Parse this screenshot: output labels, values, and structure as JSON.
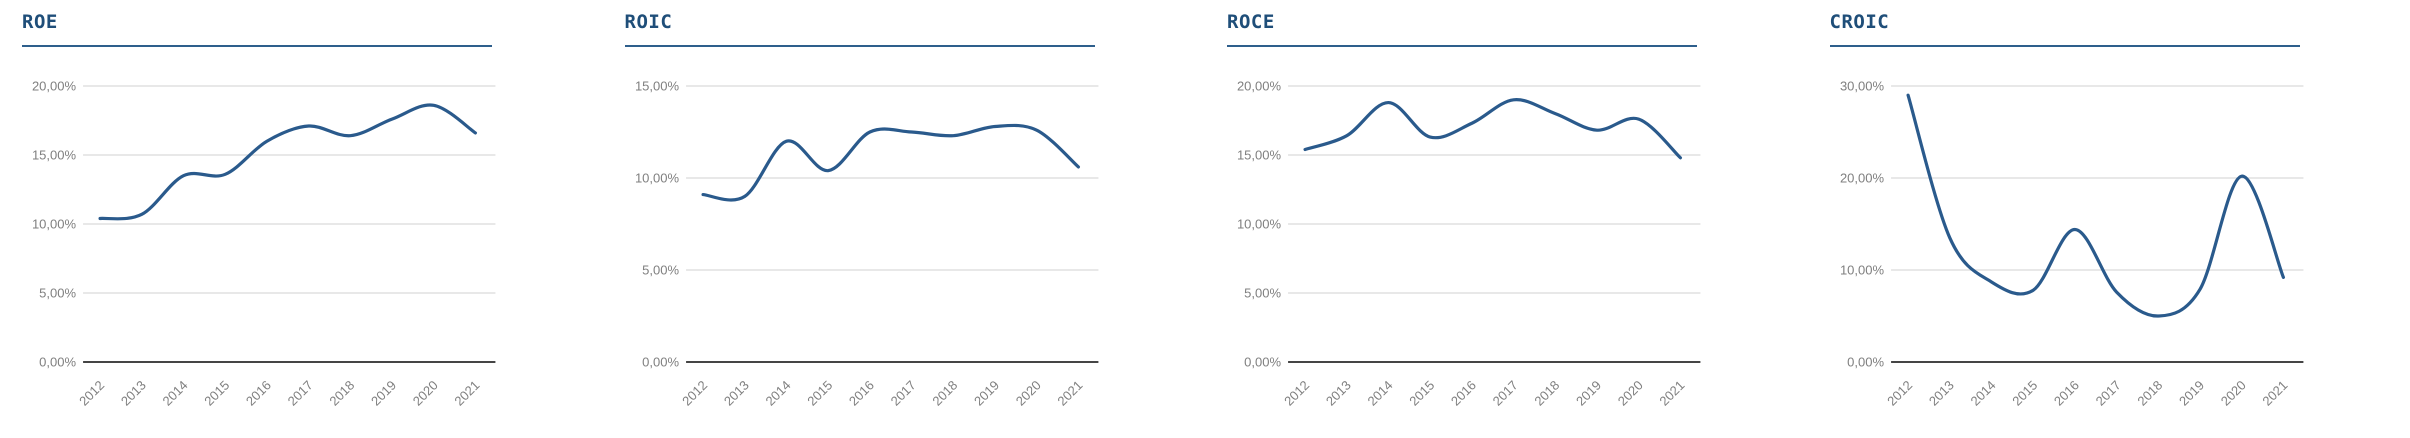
{
  "style": {
    "title_color": "#1F4E79",
    "underline_color": "#2E5F8C",
    "line_color": "#2A5A8C",
    "grid_color": "#D9D9D9",
    "axis_color": "#454545",
    "tick_color": "#7F7F7F",
    "background": "#FFFFFF"
  },
  "chart_data": [
    {
      "type": "line",
      "title": "ROE",
      "x": [
        "2012",
        "2013",
        "2014",
        "2015",
        "2016",
        "2017",
        "2018",
        "2019",
        "2020",
        "2021"
      ],
      "values": [
        10.4,
        10.7,
        13.5,
        13.6,
        16.0,
        17.1,
        16.4,
        17.6,
        18.6,
        16.6
      ],
      "ylim": [
        0,
        20
      ],
      "yticks": [
        0,
        5,
        10,
        15,
        20
      ],
      "ytick_labels": [
        "0,00%",
        "5,00%",
        "10,00%",
        "15,00%",
        "20,00%"
      ],
      "xlabel": "",
      "ylabel": "",
      "grid": true,
      "legend": false,
      "smooth": true
    },
    {
      "type": "line",
      "title": "ROIC",
      "x": [
        "2012",
        "2013",
        "2014",
        "2015",
        "2016",
        "2017",
        "2018",
        "2019",
        "2020",
        "2021"
      ],
      "values": [
        9.1,
        9.0,
        12.0,
        10.4,
        12.5,
        12.5,
        12.3,
        12.8,
        12.6,
        10.6
      ],
      "ylim": [
        0,
        15
      ],
      "yticks": [
        0,
        5,
        10,
        15
      ],
      "ytick_labels": [
        "0,00%",
        "5,00%",
        "10,00%",
        "15,00%"
      ],
      "xlabel": "",
      "ylabel": "",
      "grid": true,
      "legend": false,
      "smooth": true
    },
    {
      "type": "line",
      "title": "ROCE",
      "x": [
        "2012",
        "2013",
        "2014",
        "2015",
        "2016",
        "2017",
        "2018",
        "2019",
        "2020",
        "2021"
      ],
      "values": [
        15.4,
        16.4,
        18.8,
        16.3,
        17.3,
        19.0,
        18.0,
        16.8,
        17.6,
        14.8
      ],
      "ylim": [
        0,
        20
      ],
      "yticks": [
        0,
        5,
        10,
        15,
        20
      ],
      "ytick_labels": [
        "0,00%",
        "5,00%",
        "10,00%",
        "15,00%",
        "20,00%"
      ],
      "xlabel": "",
      "ylabel": "",
      "grid": true,
      "legend": false,
      "smooth": true
    },
    {
      "type": "line",
      "title": "CROIC",
      "x": [
        "2012",
        "2013",
        "2014",
        "2015",
        "2016",
        "2017",
        "2018",
        "2019",
        "2020",
        "2021"
      ],
      "values": [
        29.0,
        13.5,
        8.7,
        7.8,
        14.4,
        7.6,
        5.0,
        7.9,
        20.2,
        9.2
      ],
      "ylim": [
        0,
        30
      ],
      "yticks": [
        0,
        10,
        20,
        30
      ],
      "ytick_labels": [
        "0,00%",
        "10,00%",
        "20,00%",
        "30,00%"
      ],
      "xlabel": "",
      "ylabel": "",
      "grid": true,
      "legend": false,
      "smooth": true
    }
  ]
}
